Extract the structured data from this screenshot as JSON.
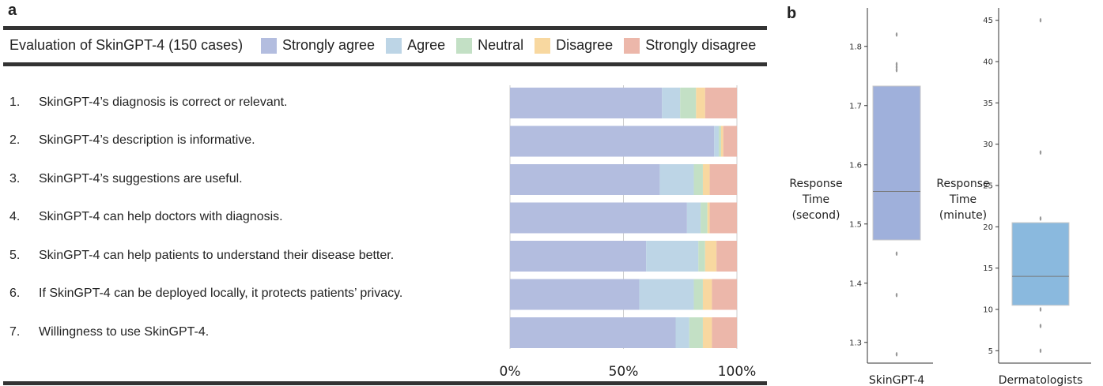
{
  "panel_a": {
    "label": "a",
    "title": "Evaluation of SkinGPT-4 (150 cases)",
    "legend": [
      {
        "name": "Strongly agree",
        "color": "#b3bddf"
      },
      {
        "name": "Agree",
        "color": "#bdd5e6"
      },
      {
        "name": "Neutral",
        "color": "#c3e0c5"
      },
      {
        "name": "Disagree",
        "color": "#f8d8a0"
      },
      {
        "name": "Strongly disagree",
        "color": "#ecb7aa"
      }
    ],
    "questions": [
      {
        "num": "1.",
        "text": "SkinGPT-4’s diagnosis is correct or relevant."
      },
      {
        "num": "2.",
        "text": "SkinGPT-4’s description is informative."
      },
      {
        "num": "3.",
        "text": "SkinGPT-4’s suggestions are useful."
      },
      {
        "num": "4.",
        "text": "SkinGPT-4 can help doctors with diagnosis."
      },
      {
        "num": "5.",
        "text": "SkinGPT-4 can help patients to understand their disease better."
      },
      {
        "num": "6.",
        "text": "If SkinGPT-4 can be deployed locally, it protects patients’ privacy."
      },
      {
        "num": "7.",
        "text": "Willingness to use SkinGPT-4."
      }
    ]
  },
  "panel_b": {
    "label": "b"
  },
  "chart_data": [
    {
      "type": "bar",
      "orientation": "horizontal",
      "stacked": true,
      "categories": [
        "1.",
        "2.",
        "3.",
        "4.",
        "5.",
        "6.",
        "7."
      ],
      "series": [
        {
          "name": "Strongly agree",
          "color": "#b3bddf",
          "values": [
            67,
            90,
            66,
            78,
            60,
            57,
            73
          ]
        },
        {
          "name": "Agree",
          "color": "#bdd5e6",
          "values": [
            8,
            2,
            15,
            6,
            23,
            24,
            6
          ]
        },
        {
          "name": "Neutral",
          "color": "#c3e0c5",
          "values": [
            7,
            1,
            4,
            3,
            3,
            4,
            6
          ]
        },
        {
          "name": "Disagree",
          "color": "#f8d8a0",
          "values": [
            4,
            1,
            3,
            1,
            5,
            4,
            4
          ]
        },
        {
          "name": "Strongly disagree",
          "color": "#ecb7aa",
          "values": [
            14,
            6,
            12,
            12,
            9,
            11,
            11
          ]
        }
      ],
      "xlim": [
        0,
        100
      ],
      "xticks": [
        "0%",
        "50%",
        "100%"
      ]
    },
    {
      "type": "box",
      "category": "SkinGPT-4",
      "ylabel": "Response Time (second)",
      "color": "#9fb0db",
      "q1": 1.473,
      "median": 1.555,
      "q3": 1.733,
      "outliers": [
        1.82,
        1.77,
        1.765,
        1.76,
        1.45,
        1.38,
        1.28
      ],
      "ylim": [
        1.265,
        1.865
      ],
      "yticks": [
        "1.3",
        "1.4",
        "1.5",
        "1.6",
        "1.7",
        "1.8"
      ]
    },
    {
      "type": "box",
      "category": "Dermatologists",
      "ylabel": "Response Time (minute)",
      "color": "#8ab9de",
      "q1": 10.5,
      "median": 14,
      "q3": 20.5,
      "outliers": [
        45,
        29,
        21,
        10,
        8,
        5
      ],
      "ylim": [
        3.5,
        46.5
      ],
      "yticks": [
        "5",
        "10",
        "15",
        "20",
        "25",
        "30",
        "35",
        "40",
        "45"
      ]
    }
  ]
}
